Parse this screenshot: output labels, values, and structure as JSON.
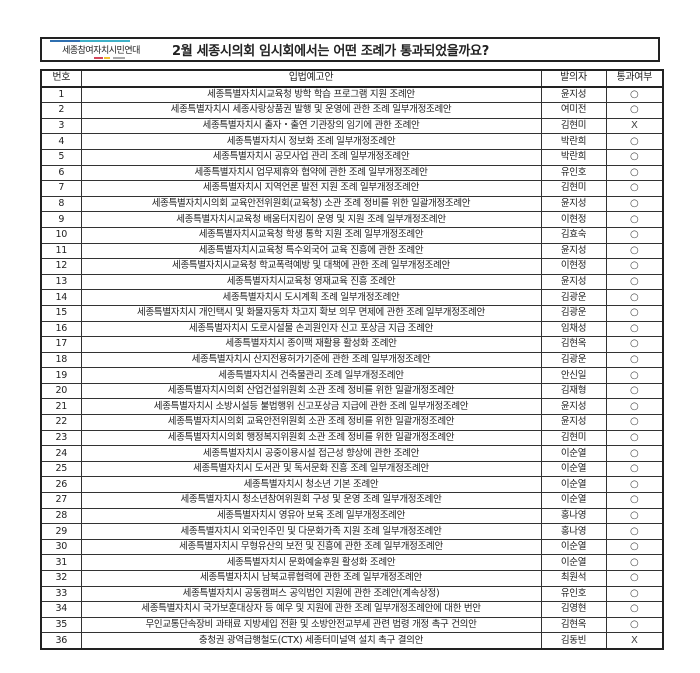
{
  "header": {
    "logo_text": "세종참여자치시민연대",
    "title": "2월 세종시의회 임시회에서는 어떤 조례가 통과되었을까요?",
    "logo_colors": {
      "top_bar": "#2f6fb0",
      "top_bar2": "#3fb1c8",
      "bottom_red": "#d6455a",
      "bottom_yellow": "#f2c230",
      "bottom_grey": "#aaaaaa"
    }
  },
  "table": {
    "columns": [
      "번호",
      "입법예고안",
      "발의자",
      "통과여부"
    ],
    "rows": [
      {
        "no": "1",
        "bill": "세종특별자치시교육청 방학 학습 프로그램 지원 조례안",
        "sponsor": "윤지성",
        "passed": "○"
      },
      {
        "no": "2",
        "bill": "세종특별자치시 세종사랑상품권 발행 및 운영에 관한 조례 일부개정조례안",
        "sponsor": "여미전",
        "passed": "○"
      },
      {
        "no": "3",
        "bill": "세종특별자치시 출자・출연 기관장의 임기에 관한 조례안",
        "sponsor": "김현미",
        "passed": "X"
      },
      {
        "no": "4",
        "bill": "세종특별자치시 정보화 조례 일부개정조례안",
        "sponsor": "박란희",
        "passed": "○"
      },
      {
        "no": "5",
        "bill": "세종특별자치시 공모사업 관리 조례 일부개정조례안",
        "sponsor": "박란희",
        "passed": "○"
      },
      {
        "no": "6",
        "bill": "세종특별자치시 업무제휴와 협약에 관한 조례 일부개정조례안",
        "sponsor": "유인호",
        "passed": "○"
      },
      {
        "no": "7",
        "bill": "세종특별자치시 지역언론 발전 지원 조례 일부개정조례안",
        "sponsor": "김현미",
        "passed": "○"
      },
      {
        "no": "8",
        "bill": "세종특별자치시의회 교육안전위원회(교육청) 소관 조례 정비를 위한 일괄개정조례안",
        "sponsor": "윤지성",
        "passed": "○"
      },
      {
        "no": "9",
        "bill": "세종특별자치시교육청 배움터지킴이 운영 및 지원 조례 일부개정조례안",
        "sponsor": "이현정",
        "passed": "○"
      },
      {
        "no": "10",
        "bill": "세종특별자치시교육청 학생 통학 지원 조례 일부개정조례안",
        "sponsor": "김효숙",
        "passed": "○"
      },
      {
        "no": "11",
        "bill": "세종특별자치시교육청 특수외국어 교육 진흥에 관한 조례안",
        "sponsor": "윤지성",
        "passed": "○"
      },
      {
        "no": "12",
        "bill": "세종특별자치시교육청 학교폭력예방 및 대책에 관한 조례 일부개정조례안",
        "sponsor": "이현정",
        "passed": "○"
      },
      {
        "no": "13",
        "bill": "세종특별자치시교육청 영재교육 진흥 조례안",
        "sponsor": "윤지성",
        "passed": "○"
      },
      {
        "no": "14",
        "bill": "세종특별자치시 도시계획 조례 일부개정조례안",
        "sponsor": "김광운",
        "passed": "○"
      },
      {
        "no": "15",
        "bill": "세종특별자치시 개인택시 및 화물자동차 차고지 확보 의무 면제에 관한 조례 일부개정조례안",
        "sponsor": "김광운",
        "passed": "○"
      },
      {
        "no": "16",
        "bill": "세종특별자치시 도로시설물 손괴원인자 신고 포상금 지급 조례안",
        "sponsor": "임채성",
        "passed": "○"
      },
      {
        "no": "17",
        "bill": "세종특별자치시 종이팩 재활용 활성화 조례안",
        "sponsor": "김현옥",
        "passed": "○"
      },
      {
        "no": "18",
        "bill": "세종특별자치시 산지전용허가기준에 관한 조례 일부개정조례안",
        "sponsor": "김광운",
        "passed": "○"
      },
      {
        "no": "19",
        "bill": "세종특별자치시 건축물관리 조례 일부개정조례안",
        "sponsor": "안신일",
        "passed": "○"
      },
      {
        "no": "20",
        "bill": "세종특별자치시의회 산업건설위원회 소관 조례 정비를 위한 일괄개정조례안",
        "sponsor": "김재형",
        "passed": "○"
      },
      {
        "no": "21",
        "bill": "세종특별자치시 소방시설등 불법행위 신고포상금 지급에 관한 조례 일부개정조례안",
        "sponsor": "윤지성",
        "passed": "○"
      },
      {
        "no": "22",
        "bill": "세종특별자치시의회 교육안전위원회 소관 조례 정비를 위한 일괄개정조례안",
        "sponsor": "윤지성",
        "passed": "○"
      },
      {
        "no": "23",
        "bill": "세종특별자치시의회 행정복지위원회 소관 조례 정비를 위한 일괄개정조례안",
        "sponsor": "김현미",
        "passed": "○"
      },
      {
        "no": "24",
        "bill": "세종특별자치시 공중이용시설 접근성 향상에 관한 조례안",
        "sponsor": "이순열",
        "passed": "○"
      },
      {
        "no": "25",
        "bill": "세종특별자치시 도서관 및 독서문화 진흥 조례 일부개정조례안",
        "sponsor": "이순열",
        "passed": "○"
      },
      {
        "no": "26",
        "bill": "세종특별자치시 청소년 기본 조례안",
        "sponsor": "이순열",
        "passed": "○"
      },
      {
        "no": "27",
        "bill": "세종특별자치시 청소년참여위원회 구성 및 운영 조례 일부개정조례안",
        "sponsor": "이순열",
        "passed": "○"
      },
      {
        "no": "28",
        "bill": "세종특별자치시 영유아 보육 조례 일부개정조례안",
        "sponsor": "홍나영",
        "passed": "○"
      },
      {
        "no": "29",
        "bill": "세종특별자치시 외국인주민 및 다문화가족 지원 조례 일부개정조례안",
        "sponsor": "홍나영",
        "passed": "○"
      },
      {
        "no": "30",
        "bill": "세종특별자치시 무형유산의 보전 및 진흥에 관한 조례 일부개정조례안",
        "sponsor": "이순열",
        "passed": "○"
      },
      {
        "no": "31",
        "bill": "세종특별자치시 문화예술후원 활성화 조례안",
        "sponsor": "이순열",
        "passed": "○"
      },
      {
        "no": "32",
        "bill": "세종특별자치시 남북교류협력에 관한 조례 일부개정조례안",
        "sponsor": "최원석",
        "passed": "○"
      },
      {
        "no": "33",
        "bill": "세종특별자치시 공동캠퍼스 공익법인 지원에 관한 조례안(계속상정)",
        "sponsor": "유인호",
        "passed": "○"
      },
      {
        "no": "34",
        "bill": "세종특별자치시 국가보훈대상자 등 예우 및 지원에 관한 조례 일부개정조례안에 대한 번안",
        "sponsor": "김영현",
        "passed": "○"
      },
      {
        "no": "35",
        "bill": "무인교통단속장비 과태료 지방세입 전환 및 소방안전교부세 관련 법령 개정 촉구 건의안",
        "sponsor": "김현옥",
        "passed": "○"
      },
      {
        "no": "36",
        "bill": "충청권 광역급행철도(CTX) 세종터미널역 설치 촉구 결의안",
        "sponsor": "김동빈",
        "passed": "X"
      }
    ]
  }
}
